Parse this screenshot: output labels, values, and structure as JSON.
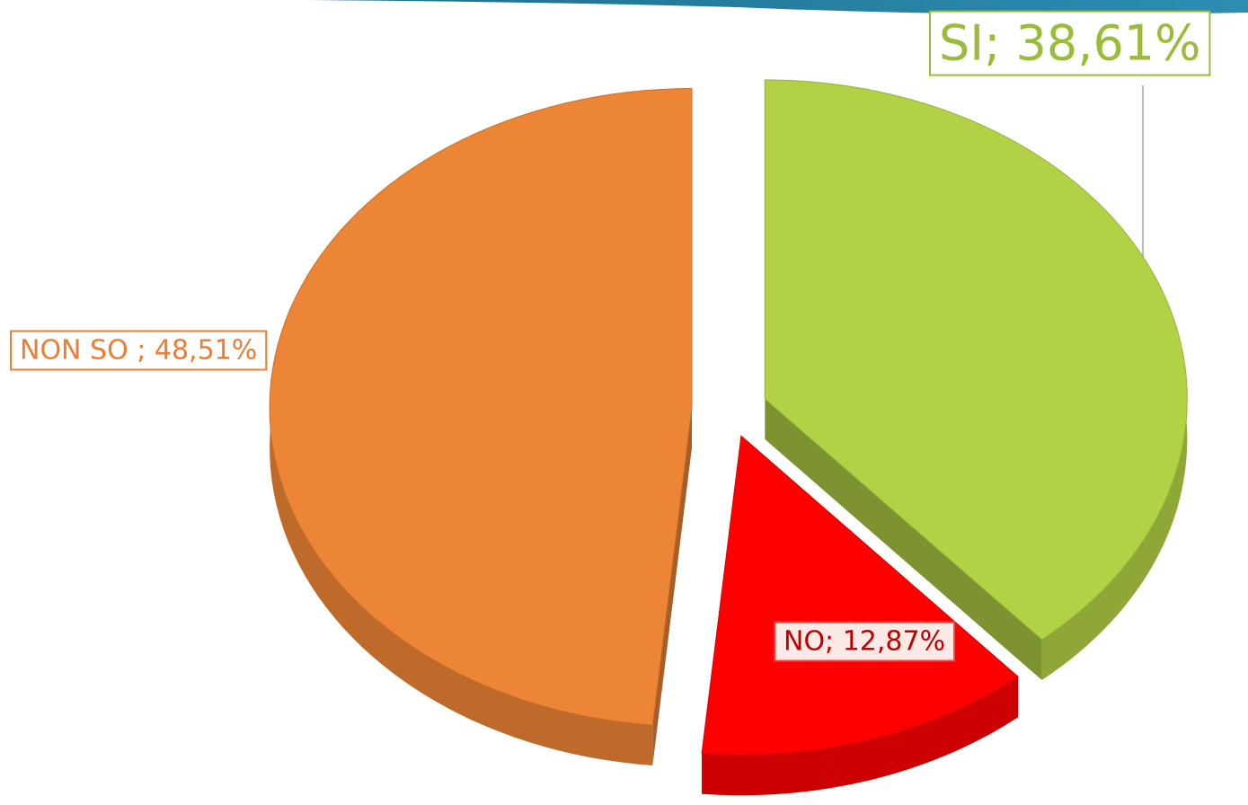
{
  "chart_data": {
    "type": "pie",
    "categories": [
      "SI",
      "NO",
      "NON SO"
    ],
    "values": [
      38.61,
      12.87,
      48.51
    ],
    "value_labels": [
      "SI; 38,61%",
      "NO; 12,87%",
      "NON SO ; 48,51%"
    ],
    "colors": [
      "#b2d145",
      "#ff0000",
      "#ed8536"
    ]
  }
}
